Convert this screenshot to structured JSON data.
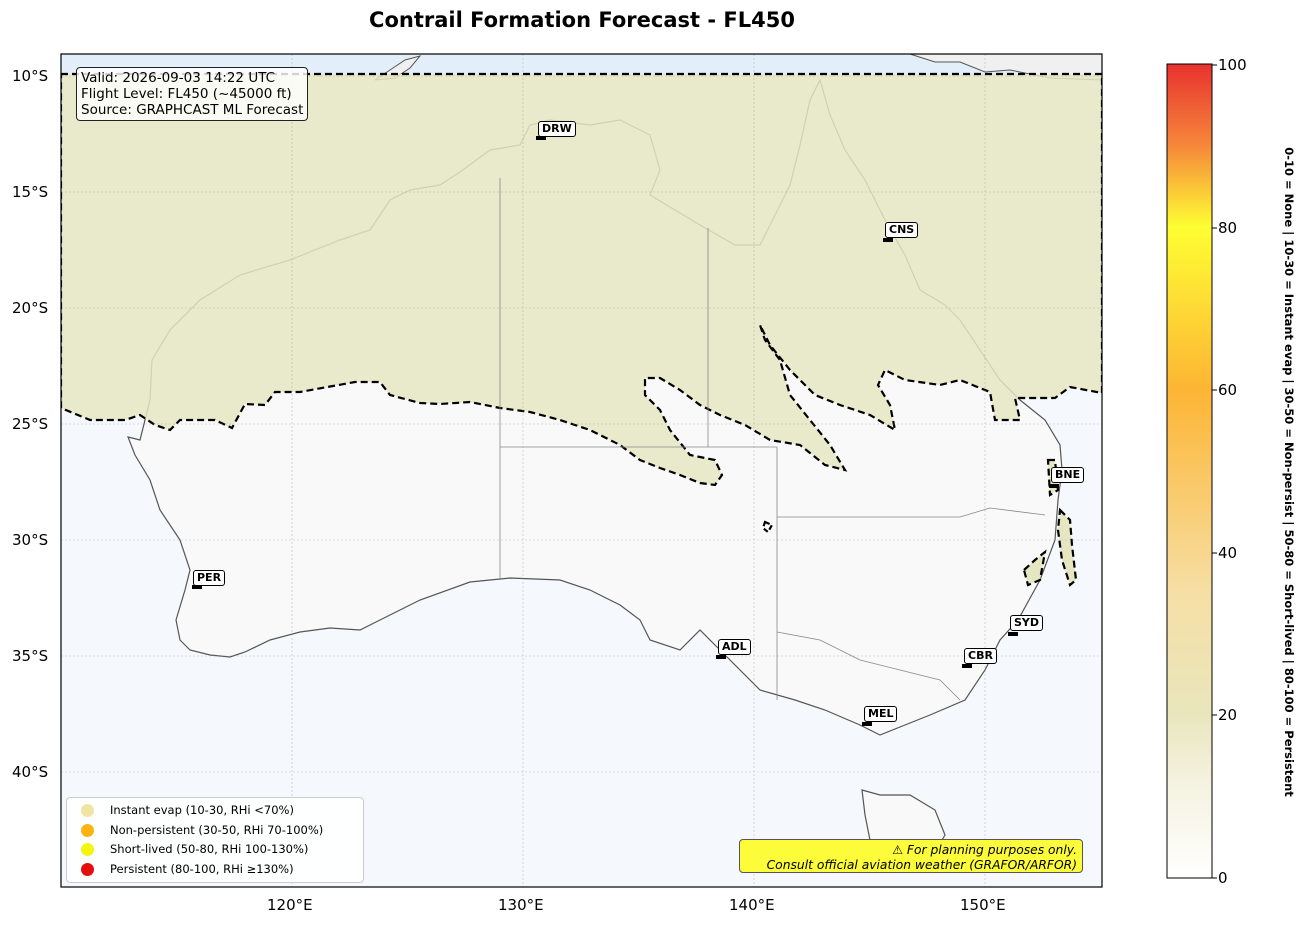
{
  "title": "Contrail Formation Forecast - FL450",
  "info": {
    "valid": "Valid: 2026-09-03 14:22 UTC",
    "flight_level": "Flight Level: FL450 (~45000 ft)",
    "source": "Source: GRAPHCAST ML Forecast"
  },
  "axes": {
    "lat_ticks": [
      "10°S",
      "15°S",
      "20°S",
      "25°S",
      "30°S",
      "35°S",
      "40°S"
    ],
    "lon_ticks": [
      "120°E",
      "130°E",
      "140°E",
      "150°E"
    ]
  },
  "airports": [
    "DRW",
    "CNS",
    "BNE",
    "PER",
    "ADL",
    "SYD",
    "CBR",
    "MEL"
  ],
  "legend": [
    {
      "label": "Instant evap (10-30, RHi <70%)",
      "color": "#f1e4a2"
    },
    {
      "label": "Non-persistent (30-50, RHi 70-100%)",
      "color": "#fdb312"
    },
    {
      "label": "Short-lived (50-80, RHi 100-130%)",
      "color": "#f5f511"
    },
    {
      "label": "Persistent (80-100, RHi ≥130%)",
      "color": "#e50e0e"
    }
  ],
  "warning": {
    "line1": "⚠ For planning purposes only.",
    "line2": "Consult official aviation weather (GRAFOR/ARFOR)"
  },
  "colorbar": {
    "ticks": [
      "0",
      "20",
      "40",
      "60",
      "80",
      "100"
    ],
    "label": "0-10 = None  |  10-30 = Instant evap  |  30-50 = Non-persist  |  50-80 = Short-lived  |  80-100 = Persistent"
  },
  "colors": {
    "ocean": "#f5f9fd",
    "land": "#f9f9f9",
    "contrail_zone": "#e6e6c3",
    "warning_bg": "#fcfc3a"
  }
}
